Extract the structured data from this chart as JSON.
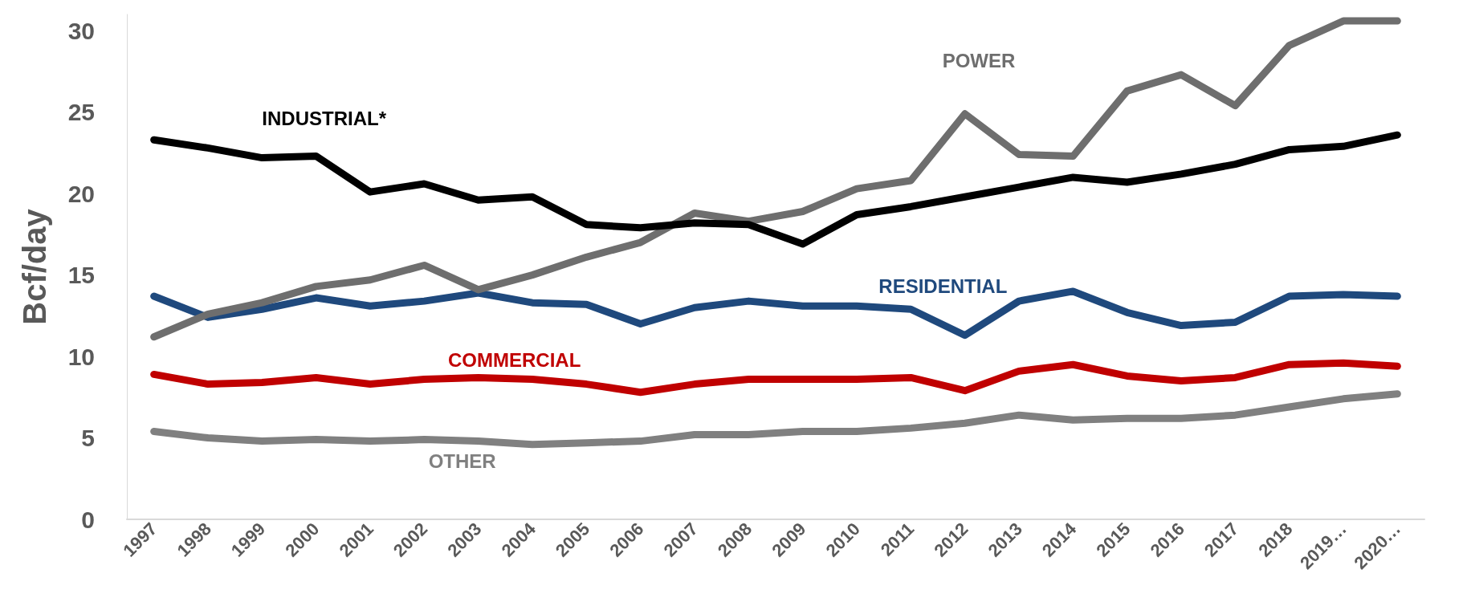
{
  "chart_data": {
    "type": "line",
    "ylabel": "Bcf/day",
    "categories": [
      "1997",
      "1998",
      "1999",
      "2000",
      "2001",
      "2002",
      "2003",
      "2004",
      "2005",
      "2006",
      "2007",
      "2008",
      "2009",
      "2010",
      "2011",
      "2012",
      "2013",
      "2014",
      "2015",
      "2016",
      "2017",
      "2018",
      "2019…",
      "2020…"
    ],
    "ylim": [
      0,
      31
    ],
    "yticks": [
      0,
      5,
      10,
      15,
      20,
      25,
      30
    ],
    "grid": false,
    "marker": "none",
    "line_style": "solid",
    "series": [
      {
        "name": "INDUSTRIAL*",
        "color": "#000000",
        "values": [
          23.3,
          22.8,
          22.2,
          22.3,
          20.1,
          20.6,
          19.6,
          19.8,
          18.1,
          17.9,
          18.2,
          18.1,
          16.9,
          18.7,
          19.2,
          19.8,
          20.4,
          21.0,
          20.7,
          21.2,
          21.8,
          22.7,
          22.9,
          23.6
        ]
      },
      {
        "name": "POWER",
        "color": "#6e6e6e",
        "values": [
          11.2,
          12.6,
          13.3,
          14.3,
          14.7,
          15.6,
          14.1,
          15.0,
          16.1,
          17.0,
          18.8,
          18.3,
          18.9,
          20.3,
          20.8,
          24.9,
          22.4,
          22.3,
          26.3,
          27.3,
          25.4,
          29.1,
          30.6,
          30.6
        ]
      },
      {
        "name": "RESIDENTIAL",
        "color": "#1f497d",
        "values": [
          13.7,
          12.4,
          12.9,
          13.6,
          13.1,
          13.4,
          13.9,
          13.3,
          13.2,
          12.0,
          13.0,
          13.4,
          13.1,
          13.1,
          12.9,
          11.3,
          13.4,
          14.0,
          12.7,
          11.9,
          12.1,
          13.7,
          13.8,
          13.7
        ]
      },
      {
        "name": "COMMERCIAL",
        "color": "#c00000",
        "values": [
          8.9,
          8.3,
          8.4,
          8.7,
          8.3,
          8.6,
          8.7,
          8.6,
          8.3,
          7.8,
          8.3,
          8.6,
          8.6,
          8.6,
          8.7,
          7.9,
          9.1,
          9.5,
          8.8,
          8.5,
          8.7,
          9.5,
          9.6,
          9.4
        ]
      },
      {
        "name": "OTHER",
        "color": "#808080",
        "values": [
          5.4,
          5.0,
          4.8,
          4.9,
          4.8,
          4.9,
          4.8,
          4.6,
          4.7,
          4.8,
          5.2,
          5.2,
          5.4,
          5.4,
          5.6,
          5.9,
          6.4,
          6.1,
          6.2,
          6.2,
          6.4,
          6.9,
          7.4,
          7.7
        ]
      }
    ]
  }
}
